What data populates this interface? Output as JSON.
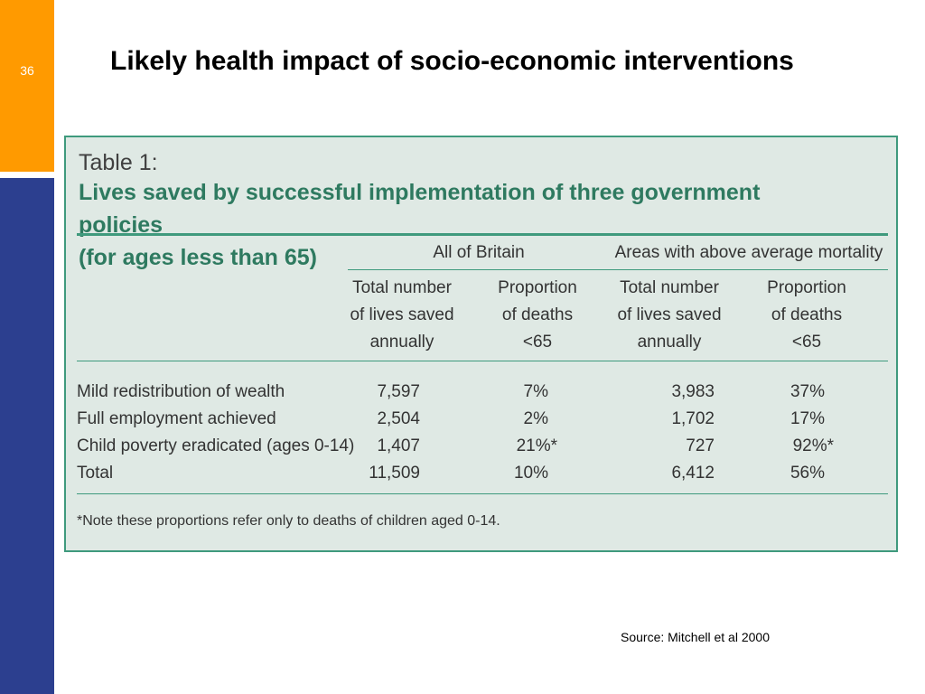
{
  "slide": {
    "number": "36",
    "title": "Likely health impact of socio-economic interventions",
    "source": "Source: Mitchell et al 2000"
  },
  "table": {
    "caption_prefix": "Table 1:",
    "caption_line1": "Lives saved by successful implementation of three government policies",
    "caption_line2": "(for ages less than 65)",
    "group_headers": [
      "All of Britain",
      "Areas with above average mortality"
    ],
    "column_headers": [
      [
        "Total number",
        "of lives saved",
        "annually"
      ],
      [
        "Proportion",
        "of deaths",
        "<65"
      ],
      [
        "Total number",
        "of lives saved",
        "annually"
      ],
      [
        "Proportion",
        "of deaths",
        "<65"
      ]
    ],
    "rows": [
      {
        "label": "Mild redistribution of wealth",
        "values": [
          "7,597",
          "7%",
          "3,983",
          "37%"
        ]
      },
      {
        "label": "Full employment achieved",
        "values": [
          "2,504",
          "2%",
          "1,702",
          "17%"
        ]
      },
      {
        "label": "Child poverty eradicated (ages 0-14)",
        "values": [
          "1,407",
          "21%*",
          "727",
          "92%*"
        ]
      },
      {
        "label": "Total",
        "values": [
          "11,509",
          "10%",
          "6,412",
          "56%"
        ]
      }
    ],
    "note": "*Note these proportions refer only to deaths of children aged 0-14."
  },
  "colors": {
    "orange": "#ff9a00",
    "navy": "#2c3f8f",
    "table_bg": "#dfe9e4",
    "table_accent": "#2e7a60"
  }
}
